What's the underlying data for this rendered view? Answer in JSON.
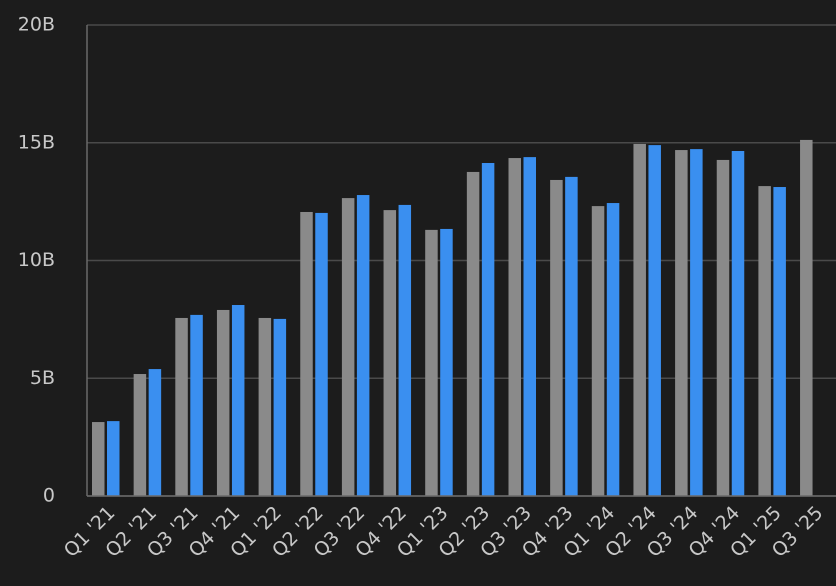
{
  "chart_data": {
    "type": "bar",
    "categories": [
      "Q1 '21",
      "Q2 '21",
      "Q3 '21",
      "Q4 '21",
      "Q1 '22",
      "Q2 '22",
      "Q3 '22",
      "Q4 '22",
      "Q1 '23",
      "Q2 '23",
      "Q3 '23",
      "Q4 '23",
      "Q1 '24",
      "Q2 '24",
      "Q3 '24",
      "Q4 '24",
      "Q1 '25",
      "Q3 '25"
    ],
    "series": [
      {
        "color": "#8a8a8a",
        "values": [
          3.14,
          5.18,
          7.56,
          7.9,
          7.56,
          12.06,
          12.65,
          12.14,
          11.3,
          13.76,
          14.35,
          13.42,
          12.31,
          14.95,
          14.69,
          14.27,
          13.16,
          15.12
        ]
      },
      {
        "color": "#3a8ff0",
        "values": [
          3.18,
          5.39,
          7.69,
          8.11,
          7.52,
          12.02,
          12.78,
          12.36,
          11.34,
          14.14,
          14.39,
          13.55,
          12.44,
          14.9,
          14.73,
          14.65,
          13.12,
          null
        ]
      }
    ],
    "ylim": [
      0,
      20
    ],
    "yticks": [
      0,
      {
        "value": 5,
        "label": "5B"
      },
      {
        "value": 10,
        "label": "10B"
      },
      {
        "value": 15,
        "label": "15B"
      },
      {
        "value": 20,
        "label": "20B"
      }
    ],
    "grid": true
  }
}
